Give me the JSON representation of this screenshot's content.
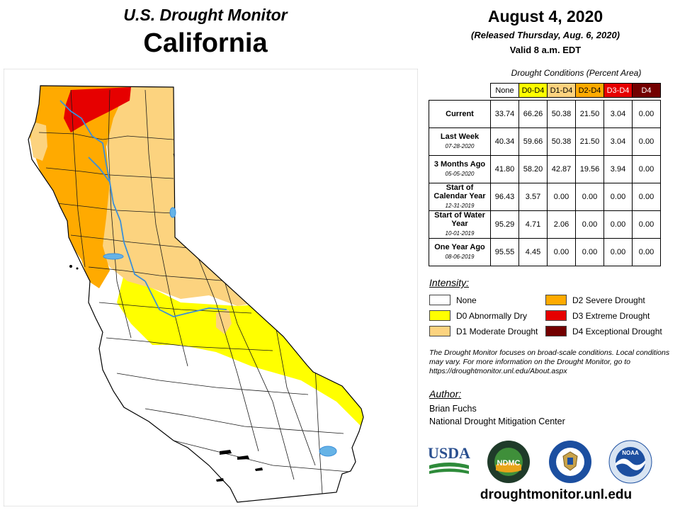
{
  "header": {
    "monitor_title": "U.S. Drought Monitor",
    "state": "California",
    "date": "August 4, 2020",
    "released": "(Released Thursday, Aug. 6, 2020)",
    "valid": "Valid 8 a.m. EDT"
  },
  "conditions": {
    "caption": "Drought Conditions (Percent Area)",
    "columns": [
      "None",
      "D0-D4",
      "D1-D4",
      "D2-D4",
      "D3-D4",
      "D4"
    ],
    "column_colors": [
      "#ffffff",
      "#ffff00",
      "#fcd37f",
      "#ffaa00",
      "#e60000",
      "#730000"
    ],
    "rows": [
      {
        "label": "Current",
        "date": "",
        "values": [
          "33.74",
          "66.26",
          "50.38",
          "21.50",
          "3.04",
          "0.00"
        ]
      },
      {
        "label": "Last Week",
        "date": "07-28-2020",
        "values": [
          "40.34",
          "59.66",
          "50.38",
          "21.50",
          "3.04",
          "0.00"
        ]
      },
      {
        "label": "3 Months Ago",
        "date": "05-05-2020",
        "values": [
          "41.80",
          "58.20",
          "42.87",
          "19.56",
          "3.94",
          "0.00"
        ]
      },
      {
        "label": "Start of Calendar Year",
        "date": "12-31-2019",
        "values": [
          "96.43",
          "3.57",
          "0.00",
          "0.00",
          "0.00",
          "0.00"
        ]
      },
      {
        "label": "Start of Water Year",
        "date": "10-01-2019",
        "values": [
          "95.29",
          "4.71",
          "2.06",
          "0.00",
          "0.00",
          "0.00"
        ]
      },
      {
        "label": "One Year Ago",
        "date": "08-06-2019",
        "values": [
          "95.55",
          "4.45",
          "0.00",
          "0.00",
          "0.00",
          "0.00"
        ]
      }
    ]
  },
  "legend": {
    "title": "Intensity:",
    "items": [
      {
        "label": "None",
        "color": "#ffffff"
      },
      {
        "label": "D0 Abnormally Dry",
        "color": "#ffff00"
      },
      {
        "label": "D1 Moderate Drought",
        "color": "#fcd37f"
      },
      {
        "label": "D2 Severe Drought",
        "color": "#ffaa00"
      },
      {
        "label": "D3 Extreme Drought",
        "color": "#e60000"
      },
      {
        "label": "D4 Exceptional Drought",
        "color": "#730000"
      }
    ]
  },
  "disclaimer": "The Drought Monitor focuses on broad-scale conditions. Local conditions may vary. For more information on the Drought Monitor, go to https://droughtmonitor.unl.edu/About.aspx",
  "author": {
    "title": "Author:",
    "name": "Brian Fuchs",
    "org": "National Drought Mitigation Center"
  },
  "logos": {
    "usda": "USDA",
    "ndmc": "NDMC",
    "ndmc_ring": "NATIONAL DROUGHT MITIGATION CENTER",
    "commerce_ring": "DEPARTMENT OF COMMERCE",
    "noaa": "NOAA"
  },
  "site_url": "droughtmonitor.unl.edu",
  "map_colors": {
    "none": "#ffffff",
    "d0": "#ffff00",
    "d1": "#fcd37f",
    "d2": "#ffaa00",
    "d3": "#e60000",
    "water": "#66b3e6",
    "county_line": "#1a1a1a"
  }
}
